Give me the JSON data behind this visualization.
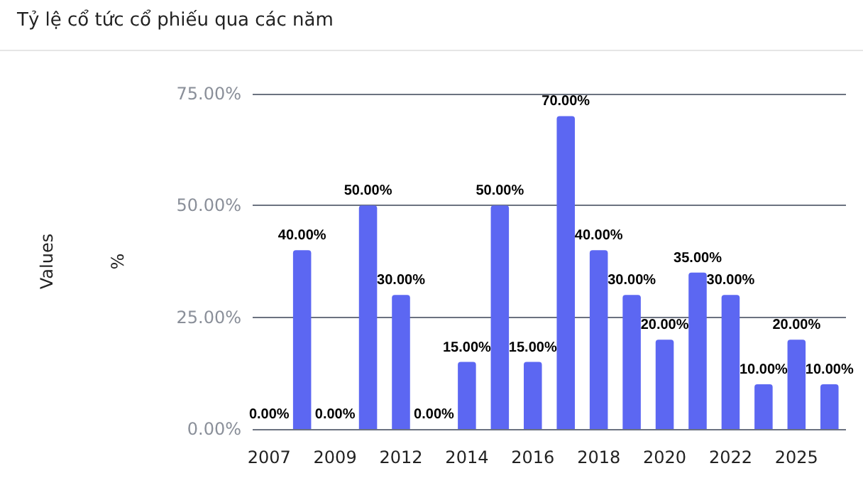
{
  "chart_data": {
    "type": "bar",
    "title": "Tỷ lệ cổ tức cổ phiếu qua các năm",
    "ylabel": "Values\n%",
    "categories": [
      "2007",
      null,
      "2009",
      null,
      "2012",
      null,
      "2014",
      null,
      "2016",
      null,
      "2018",
      null,
      "2020",
      null,
      "2022",
      null,
      "2025",
      null
    ],
    "values": [
      0,
      40,
      0,
      50,
      30,
      0,
      15,
      50,
      15,
      70,
      40,
      30,
      20,
      35,
      30,
      10,
      20,
      10
    ],
    "value_labels": [
      "0.00%",
      "40.00%",
      "0.00%",
      "50.00%",
      "30.00%",
      "0.00%",
      "15.00%",
      "50.00%",
      "15.00%",
      "70.00%",
      "40.00%",
      "30.00%",
      "20.00%",
      "35.00%",
      "30.00%",
      "10.00%",
      "20.00%",
      "10.00%"
    ],
    "color": "#5c67f2",
    "ylim": [
      0,
      75
    ],
    "yticks": [
      {
        "value": 0,
        "label": "0.00%"
      },
      {
        "value": 25,
        "label": "25.00%"
      },
      {
        "value": 50,
        "label": "50.00%"
      },
      {
        "value": 75,
        "label": "75.00%"
      }
    ],
    "grid": "y"
  }
}
